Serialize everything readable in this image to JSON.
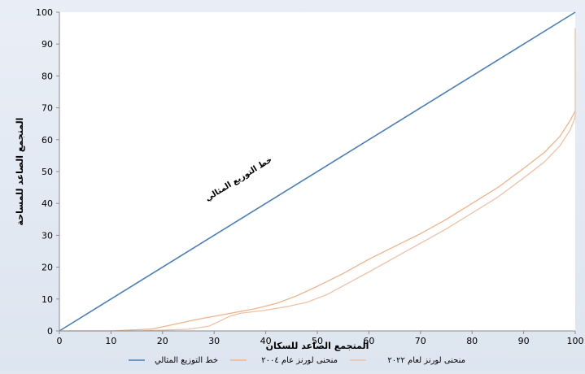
{
  "chart_data": {
    "type": "line",
    "title": "",
    "xlabel": "المتجمع الصاعد للسكان",
    "ylabel": "المتجمع الصاعد للمساحة",
    "xlim": [
      0,
      100
    ],
    "ylim": [
      0,
      100
    ],
    "xticks": [
      "0",
      "10",
      "20",
      "30",
      "40",
      "50",
      "60",
      "70",
      "80",
      "90",
      "100"
    ],
    "yticks": [
      "0",
      "10",
      "20",
      "30",
      "40",
      "50",
      "60",
      "70",
      "80",
      "90",
      "100"
    ],
    "grid": false,
    "legend_position": "bottom",
    "annotation": {
      "text": "خط التوزيع المثالي",
      "x": 35,
      "y": 47
    },
    "series": [
      {
        "name": "خط التوزيع المثالي",
        "color": "#4a7ebb",
        "points": [
          [
            0,
            0
          ],
          [
            100,
            100
          ]
        ]
      },
      {
        "name": "منحنى لورنز عام ٢٠٠٤",
        "color": "#f0b48a",
        "points": [
          [
            0,
            0
          ],
          [
            10,
            0
          ],
          [
            18,
            0.6
          ],
          [
            22,
            2
          ],
          [
            26,
            3.4
          ],
          [
            30,
            4.6
          ],
          [
            34,
            5.8
          ],
          [
            38,
            7
          ],
          [
            42,
            8.6
          ],
          [
            46,
            11
          ],
          [
            50,
            14
          ],
          [
            55,
            18
          ],
          [
            60,
            22.5
          ],
          [
            65,
            26.5
          ],
          [
            70,
            30.5
          ],
          [
            75,
            35
          ],
          [
            80,
            40
          ],
          [
            85,
            45
          ],
          [
            90,
            51
          ],
          [
            94,
            56
          ],
          [
            97,
            61
          ],
          [
            99,
            66
          ],
          [
            100,
            69
          ]
        ]
      },
      {
        "name": "منحنى لورنز لعام ٢٠٢٢",
        "color": "#eec2a8",
        "points": [
          [
            0,
            0
          ],
          [
            15,
            0
          ],
          [
            25,
            0.5
          ],
          [
            29,
            1.5
          ],
          [
            31,
            3
          ],
          [
            33,
            4.6
          ],
          [
            35,
            5.5
          ],
          [
            40,
            6.5
          ],
          [
            44,
            7.6
          ],
          [
            48,
            9
          ],
          [
            52,
            11.5
          ],
          [
            56,
            15
          ],
          [
            60,
            18.5
          ],
          [
            65,
            23
          ],
          [
            70,
            27.5
          ],
          [
            75,
            32
          ],
          [
            80,
            37
          ],
          [
            85,
            42
          ],
          [
            90,
            48
          ],
          [
            94,
            53
          ],
          [
            97,
            58
          ],
          [
            99,
            63
          ],
          [
            100,
            67
          ],
          [
            100,
            95
          ]
        ]
      }
    ]
  }
}
